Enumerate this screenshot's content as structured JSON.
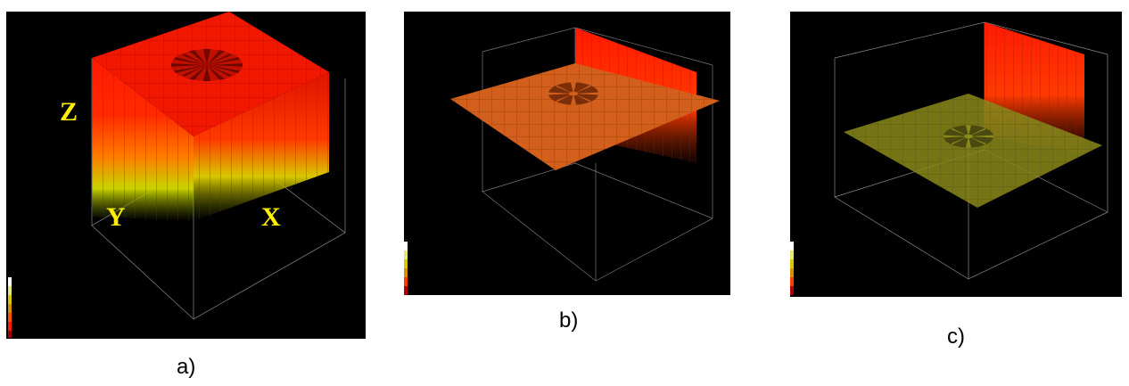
{
  "panels": [
    {
      "id": "a",
      "caption": "a)",
      "axis_labels": {
        "z": "Z",
        "y": "Y",
        "x": "X"
      },
      "colors": {
        "top": "#ff1a00",
        "mid": "#ff6a00",
        "bottom": "#c8d400"
      }
    },
    {
      "id": "b",
      "caption": "b)",
      "colors": {
        "plane": "#d2601c",
        "wall": "#ff1a00"
      }
    },
    {
      "id": "c",
      "caption": "c)",
      "colors": {
        "plane": "#8a8a1a",
        "wall": "#ff1a00"
      }
    }
  ]
}
